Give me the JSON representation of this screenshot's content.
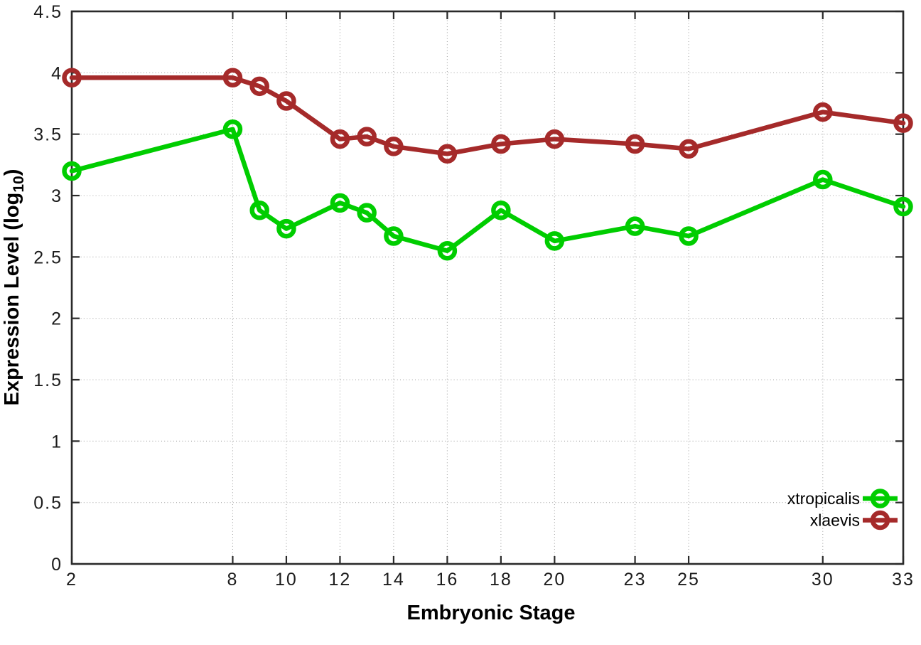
{
  "chart_data": {
    "type": "line",
    "x": [
      2,
      8,
      9,
      10,
      12,
      13,
      14,
      16,
      18,
      20,
      23,
      25,
      30,
      33
    ],
    "series": [
      {
        "name": "xtropicalis",
        "color": "#00CD00",
        "values": [
          3.2,
          3.54,
          2.88,
          2.73,
          2.94,
          2.86,
          2.67,
          2.55,
          2.88,
          2.63,
          2.75,
          2.67,
          3.13,
          2.91
        ]
      },
      {
        "name": "xlaevis",
        "color": "#A52A2A",
        "values": [
          3.96,
          3.96,
          3.89,
          3.77,
          3.46,
          3.48,
          3.4,
          3.34,
          3.42,
          3.46,
          3.42,
          3.38,
          3.68,
          3.59
        ]
      }
    ],
    "title": "",
    "xlabel": "Embryonic Stage",
    "ylabel": "Expression Level (log10)",
    "ylabel_parts": {
      "prefix": "Expression Level (log",
      "sub": "10",
      "suffix": ")"
    },
    "xlim": [
      2,
      33
    ],
    "ylim": [
      0,
      4.5
    ],
    "xticks": [
      2,
      8,
      10,
      12,
      14,
      16,
      18,
      20,
      23,
      25,
      30,
      33
    ],
    "xtick_labels": [
      "2",
      "8",
      "10",
      "12",
      "14",
      "16",
      "18",
      "20",
      "23",
      "25",
      "30",
      "33"
    ],
    "yticks": [
      0,
      0.5,
      1,
      1.5,
      2,
      2.5,
      3,
      3.5,
      4,
      4.5
    ],
    "ytick_labels": [
      "0",
      "0.5",
      "1",
      "1.5",
      "2",
      "2.5",
      "3",
      "3.5",
      "4",
      "4.5"
    ],
    "grid": true,
    "grid_style": "dotted",
    "legend_position": "bottom-right",
    "legend_entries": [
      "xtropicalis",
      "xlaevis"
    ],
    "marker": "open-circle",
    "colors": {
      "plot_background": "#ffffff",
      "border": "#2a2a2a",
      "grid": "#a8a8a8",
      "tick_text": "#1c1c1c"
    }
  }
}
